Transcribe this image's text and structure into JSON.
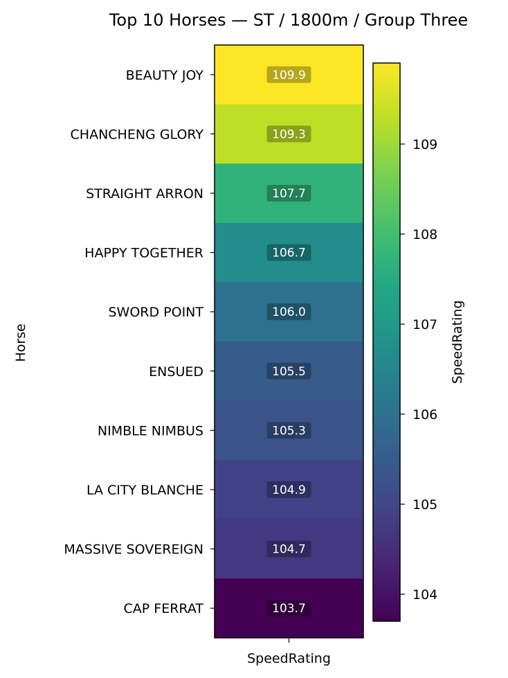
{
  "chart_data": {
    "type": "heatmap",
    "title": "Top 10 Horses — ST / 1800m / Group Three",
    "xlabel": "",
    "ylabel": "Horse",
    "x_categories": [
      "SpeedRating"
    ],
    "categories": [
      "BEAUTY JOY",
      "CHANCHENG GLORY",
      "STRAIGHT ARRON",
      "HAPPY TOGETHER",
      "SWORD POINT",
      "ENSUED",
      "NIMBLE NIMBUS",
      "LA CITY BLANCHE",
      "MASSIVE SOVEREIGN",
      "CAP FERRAT"
    ],
    "values": [
      109.9,
      109.3,
      107.7,
      106.7,
      106.0,
      105.5,
      105.3,
      104.9,
      104.7,
      103.7
    ],
    "value_labels": [
      "109.9",
      "109.3",
      "107.7",
      "106.7",
      "106.0",
      "105.5",
      "105.3",
      "104.9",
      "104.7",
      "103.7"
    ],
    "colormap": "viridis",
    "colorbar": {
      "label": "SpeedRating",
      "range": [
        103.7,
        109.9
      ],
      "ticks": [
        104,
        105,
        106,
        107,
        108,
        109
      ],
      "tick_labels": [
        "104",
        "105",
        "106",
        "107",
        "108",
        "109"
      ]
    },
    "annotations": true,
    "grid": false,
    "legend": "colorbar-right"
  }
}
